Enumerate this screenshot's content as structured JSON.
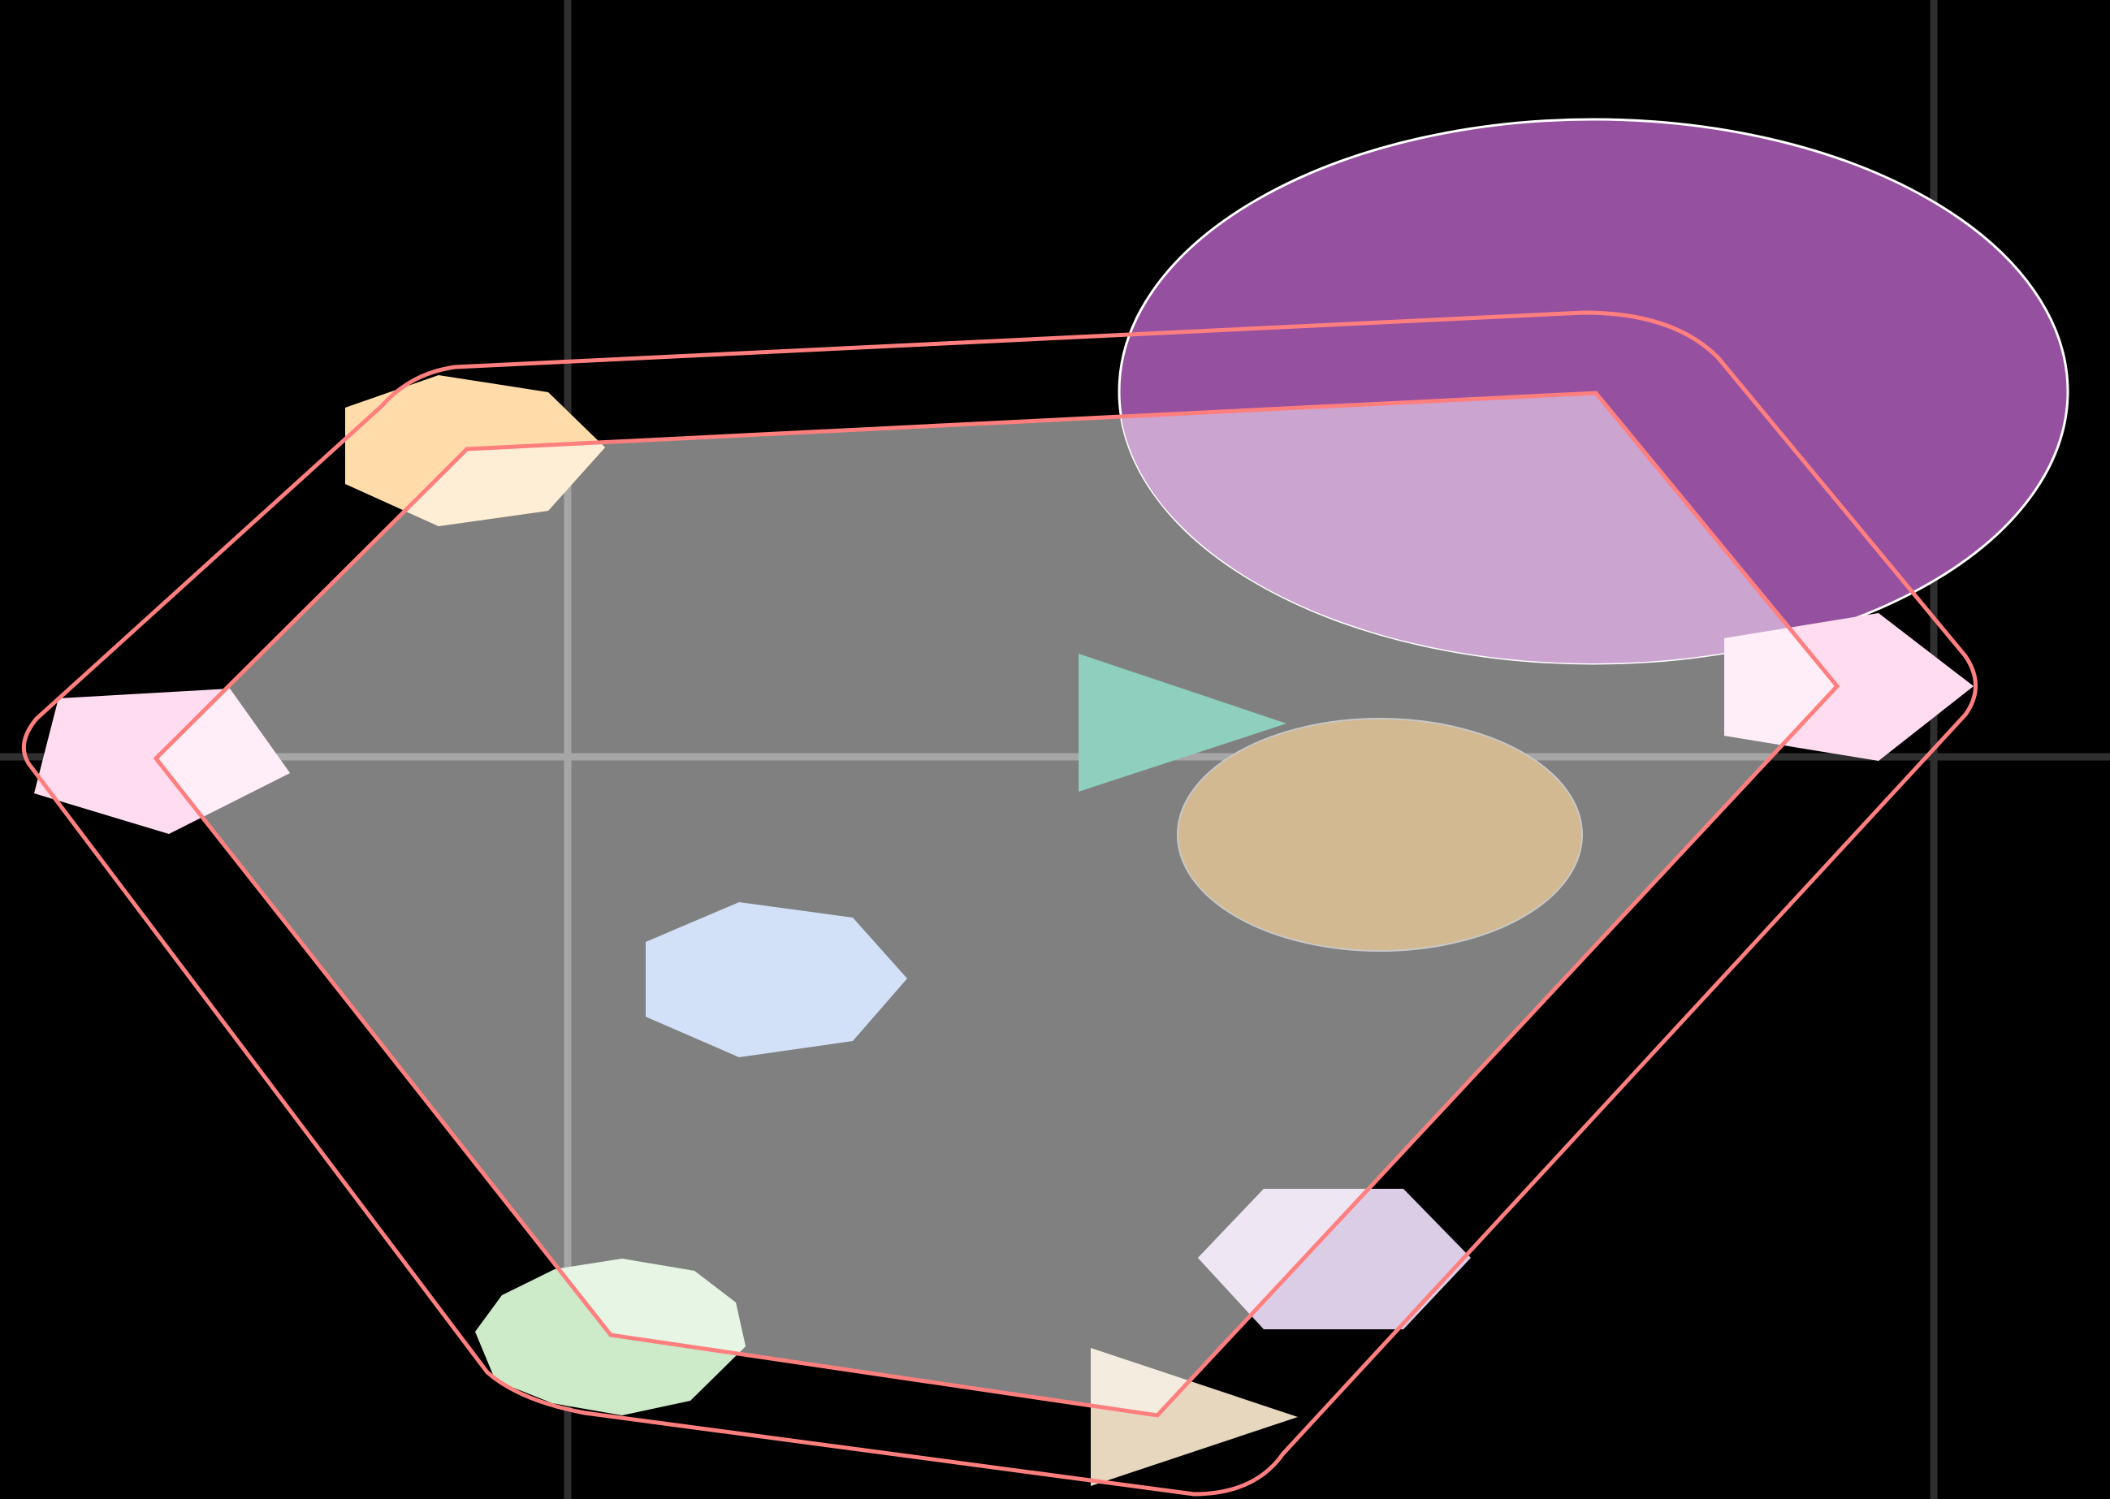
{
  "colors": {
    "background": "#000000",
    "grid_line_outside": "#2f2f2f",
    "grid_line_inside": "#a6a6a6",
    "selection_fill": "#808080",
    "selection_stroke": "#ff7f7f",
    "purple_ellipse": "#9650a0",
    "orange_hexagon": "#ffdcaa",
    "pink_left_pentagon": "#ffdcf0",
    "teal_triangle": "#8ecfbd",
    "tan_ellipse": "#d2b991",
    "blue_octagon": "#d2e1f8",
    "lavender_hexagon": "#dccde6",
    "green_heptagon": "#cdebc8",
    "beige_triangle": "#e6d7be",
    "pink_right_pentagon": "#ffdcf0",
    "shape_outline": "#ffffff"
  },
  "shapes": [
    {
      "name": "purple-ellipse",
      "kind": "ellipse",
      "fill_key": "purple_ellipse"
    },
    {
      "name": "orange-hexagon",
      "kind": "polygon",
      "fill_key": "orange_hexagon"
    },
    {
      "name": "pink-left-pentagon",
      "kind": "polygon",
      "fill_key": "pink_left_pentagon"
    },
    {
      "name": "pink-right-pentagon",
      "kind": "polygon",
      "fill_key": "pink_right_pentagon"
    },
    {
      "name": "teal-triangle",
      "kind": "polygon",
      "fill_key": "teal_triangle"
    },
    {
      "name": "tan-ellipse",
      "kind": "ellipse",
      "fill_key": "tan_ellipse"
    },
    {
      "name": "blue-octagon",
      "kind": "polygon",
      "fill_key": "blue_octagon"
    },
    {
      "name": "lavender-hexagon",
      "kind": "polygon",
      "fill_key": "lavender_hexagon"
    },
    {
      "name": "green-heptagon",
      "kind": "polygon",
      "fill_key": "green_heptagon"
    },
    {
      "name": "beige-triangle",
      "kind": "polygon",
      "fill_key": "beige_triangle"
    }
  ]
}
